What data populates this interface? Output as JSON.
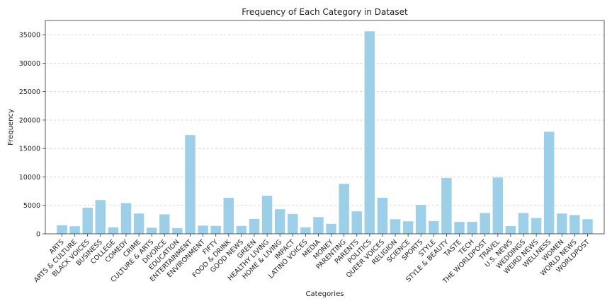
{
  "chart_data": {
    "type": "bar",
    "title": "Frequency of Each Category in Dataset",
    "xlabel": "Categories",
    "ylabel": "Frequency",
    "ylim": [
      0,
      37500
    ],
    "yticks": [
      0,
      5000,
      10000,
      15000,
      20000,
      25000,
      30000,
      35000
    ],
    "grid": "y-dashed",
    "bar_color": "#9ecfe9",
    "categories": [
      "ARTS",
      "ARTS & CULTURE",
      "BLACK VOICES",
      "BUSINESS",
      "COLLEGE",
      "COMEDY",
      "CRIME",
      "CULTURE & ARTS",
      "DIVORCE",
      "EDUCATION",
      "ENTERTAINMENT",
      "ENVIRONMENT",
      "FIFTY",
      "FOOD & DRINK",
      "GOOD NEWS",
      "GREEN",
      "HEALTHY LIVING",
      "HOME & LIVING",
      "IMPACT",
      "LATINO VOICES",
      "MEDIA",
      "MONEY",
      "PARENTING",
      "PARENTS",
      "POLITICS",
      "QUEER VOICES",
      "RELIGION",
      "SCIENCE",
      "SPORTS",
      "STYLE",
      "STYLE & BEAUTY",
      "TASTE",
      "TECH",
      "THE WORLDPOST",
      "TRAVEL",
      "U.S. NEWS",
      "WEDDINGS",
      "WEIRD NEWS",
      "WELLNESS",
      "WOMEN",
      "WORLD NEWS",
      "WORLDPOST"
    ],
    "values": [
      1509,
      1339,
      4583,
      5937,
      1144,
      5400,
      3562,
      1074,
      3426,
      1014,
      17362,
      1444,
      1401,
      6340,
      1398,
      2622,
      6694,
      4320,
      3484,
      1129,
      2944,
      1756,
      8791,
      3955,
      35602,
      6347,
      2577,
      2206,
      5077,
      2254,
      9814,
      2096,
      2104,
      3664,
      9900,
      1377,
      3653,
      2777,
      17945,
      3572,
      3299,
      2579
    ]
  }
}
